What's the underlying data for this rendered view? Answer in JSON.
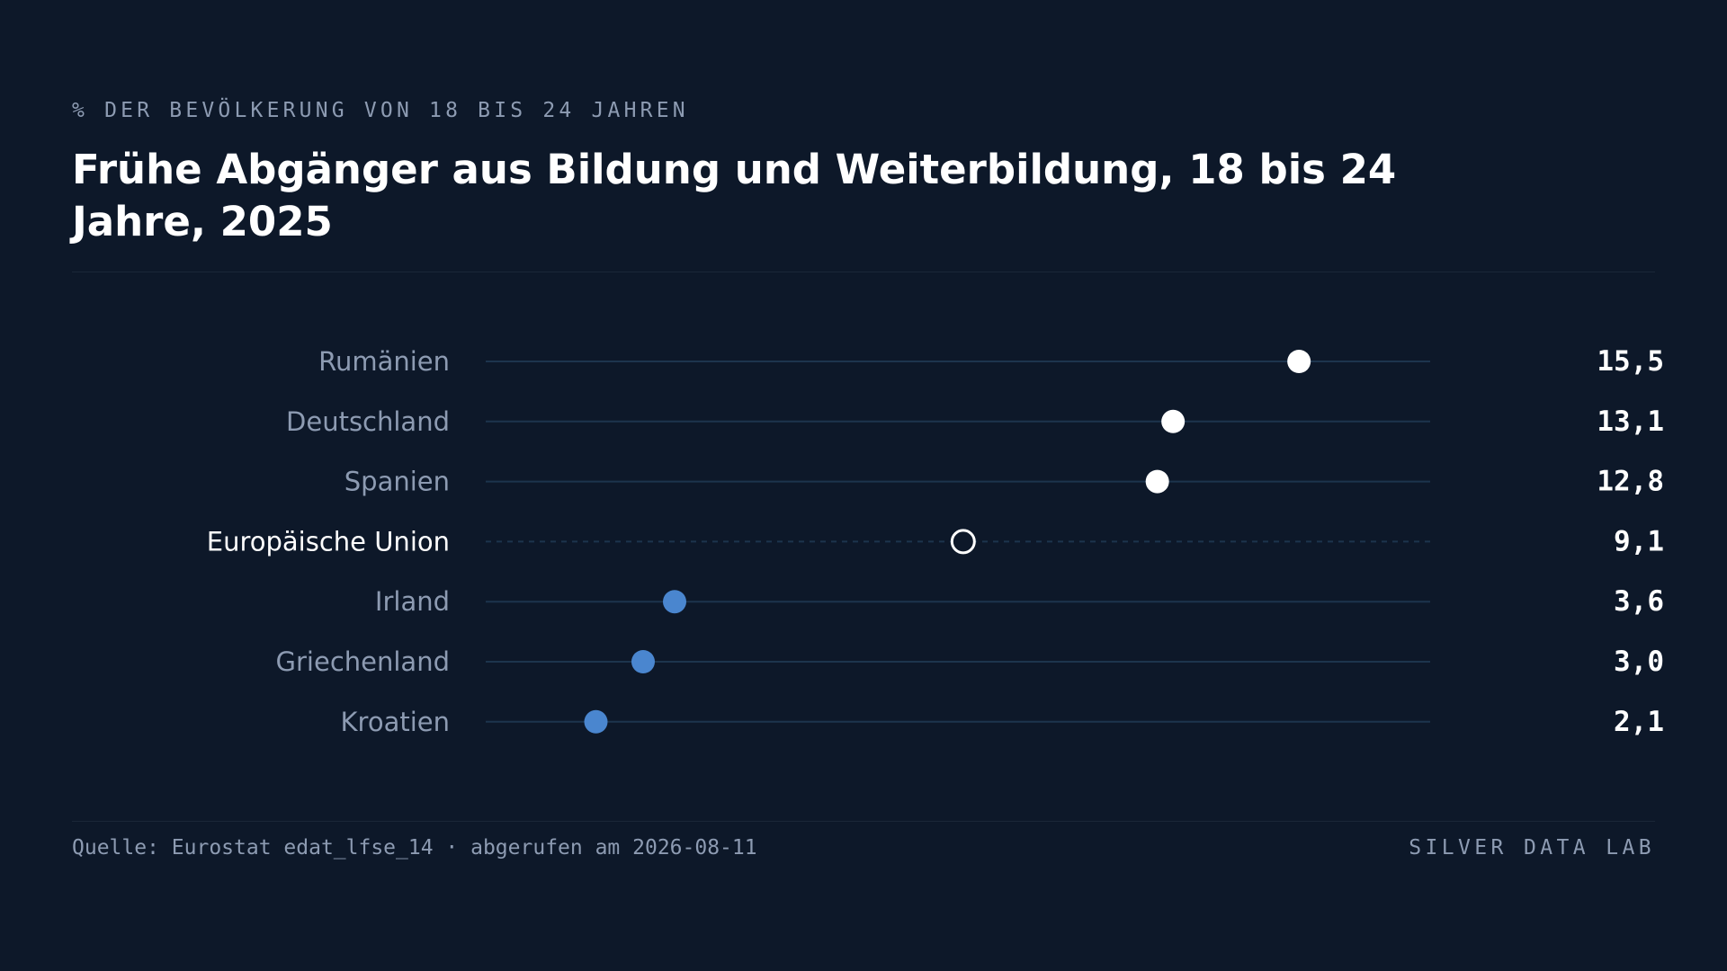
{
  "header": {
    "eyebrow": "% DER BEVÖLKERUNG VON 18 BIS 24 JAHREN",
    "title": "Frühe Abgänger aus Bildung und Weiterbildung, 18 bis 24 Jahre, 2025"
  },
  "chart_data": {
    "type": "scatter",
    "title": "Frühe Abgänger aus Bildung und Weiterbildung, 18 bis 24 Jahre, 2025",
    "subtitle": "% DER BEVÖLKERUNG VON 18 BIS 24 JAHREN",
    "xlim": [
      0,
      18
    ],
    "grid": false,
    "legend": "none",
    "categories": [
      "Rumänien",
      "Deutschland",
      "Spanien",
      "Europäische Union",
      "Irland",
      "Griechenland",
      "Kroatien"
    ],
    "values": [
      15.5,
      13.1,
      12.8,
      9.1,
      3.6,
      3.0,
      2.1
    ],
    "value_labels": [
      "15,5",
      "13,1",
      "12,8",
      "9,1",
      "3,6",
      "3,0",
      "2,1"
    ],
    "highlight": "Europäische Union"
  },
  "colors": {
    "background": "#0d1829",
    "track": "#1d344d",
    "high": "#ffffff",
    "low": "#4a86cf",
    "reference": "#ffffff",
    "label": "#8d9bb2"
  },
  "footer": {
    "source": "Quelle: Eurostat edat_lfse_14 · abgerufen am 2026-08-11",
    "brand": "SILVER DATA LAB"
  }
}
